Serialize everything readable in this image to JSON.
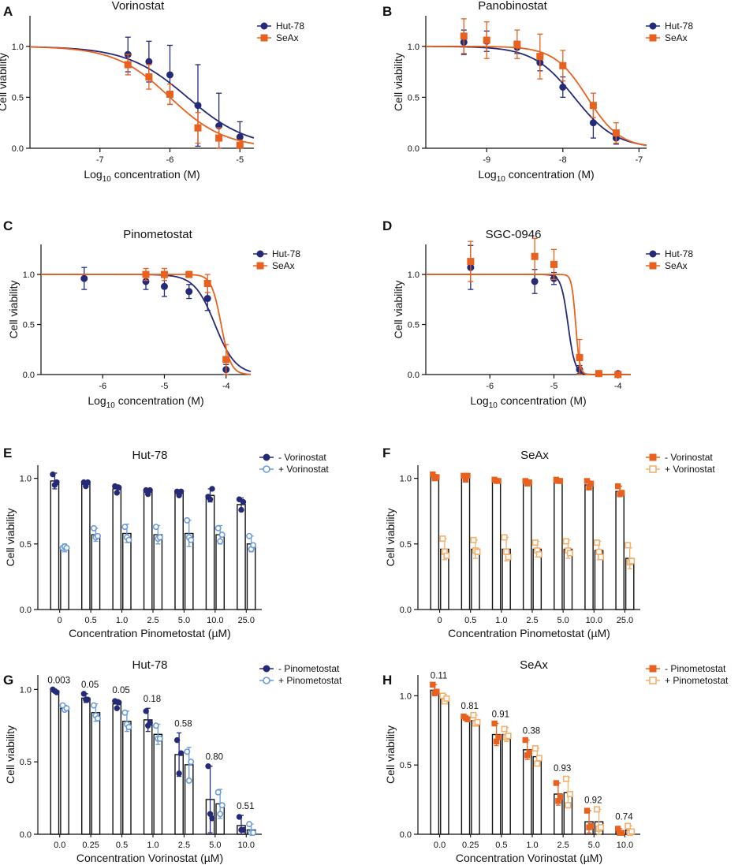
{
  "colors": {
    "hut_dark": "#252a78",
    "hut_light": "#6b9bd8",
    "seax_dark": "#e8611f",
    "seax_light": "#f2b06d",
    "axis": "#111111"
  },
  "chart_data": [
    {
      "id": "A",
      "letter": "A",
      "type": "line",
      "title": "Vorinostat",
      "xlabel_prefix": "Log",
      "xlabel_sub": "10",
      "xlabel_suffix": " concentration (M)",
      "ylabel": "Cell viability",
      "xlim": [
        -8,
        -4.8
      ],
      "ylim": [
        0,
        1.3
      ],
      "xticks": [
        -7,
        -6,
        -5
      ],
      "yticks": [
        0.0,
        0.5,
        1.0
      ],
      "xtick_labels": [
        "-7",
        "-6",
        "-5"
      ],
      "ytick_labels": [
        "0.0",
        "0.5",
        "1.0"
      ],
      "legend": [
        "Hut-78",
        "SeAx"
      ],
      "series": [
        {
          "name": "Hut-78",
          "marker": "circle",
          "color": "#252a78",
          "x": [
            -6.6,
            -6.3,
            -6.0,
            -5.6,
            -5.3,
            -5.0
          ],
          "y": [
            0.92,
            0.85,
            0.72,
            0.42,
            0.22,
            0.11
          ],
          "err": [
            0.17,
            0.2,
            0.29,
            0.4,
            0.32,
            0.15
          ],
          "fit": {
            "top": 1.0,
            "bottom": 0.0,
            "logec50": -5.75,
            "hill": 1.0
          }
        },
        {
          "name": "SeAx",
          "marker": "square",
          "color": "#e8611f",
          "x": [
            -6.6,
            -6.3,
            -6.0,
            -5.6,
            -5.3,
            -5.0
          ],
          "y": [
            0.82,
            0.7,
            0.53,
            0.2,
            0.1,
            0.03
          ],
          "err": [
            0.1,
            0.12,
            0.1,
            0.15,
            0.1,
            0.05
          ],
          "fit": {
            "top": 1.0,
            "bottom": 0.0,
            "logec50": -6.0,
            "hill": 1.1
          }
        }
      ]
    },
    {
      "id": "B",
      "letter": "B",
      "type": "line",
      "title": "Panobinostat",
      "xlabel_prefix": "Log",
      "xlabel_sub": "10",
      "xlabel_suffix": " concentration (M)",
      "ylabel": "Cell viability",
      "xlim": [
        -9.8,
        -6.9
      ],
      "ylim": [
        0,
        1.3
      ],
      "xticks": [
        -9,
        -8,
        -7
      ],
      "yticks": [
        0.0,
        0.5,
        1.0
      ],
      "xtick_labels": [
        "-9",
        "-8",
        "-7"
      ],
      "ytick_labels": [
        "0.0",
        "0.5",
        "1.0"
      ],
      "legend": [
        "Hut-78",
        "SeAx"
      ],
      "series": [
        {
          "name": "Hut-78",
          "marker": "circle",
          "color": "#252a78",
          "x": [
            -9.3,
            -9.0,
            -8.6,
            -8.3,
            -8.0,
            -7.6,
            -7.3
          ],
          "y": [
            1.04,
            1.05,
            0.99,
            0.84,
            0.6,
            0.25,
            0.1
          ],
          "err": [
            0.12,
            0.1,
            0.06,
            0.08,
            0.1,
            0.15,
            0.06
          ],
          "fit": {
            "top": 1.0,
            "bottom": 0.0,
            "logec50": -7.85,
            "hill": 1.6
          }
        },
        {
          "name": "SeAx",
          "marker": "square",
          "color": "#e8611f",
          "x": [
            -9.3,
            -9.0,
            -8.6,
            -8.3,
            -8.0,
            -7.6,
            -7.3
          ],
          "y": [
            1.1,
            1.06,
            1.02,
            0.9,
            0.81,
            0.42,
            0.15
          ],
          "err": [
            0.17,
            0.18,
            0.14,
            0.22,
            0.15,
            0.12,
            0.1
          ],
          "fit": {
            "top": 1.0,
            "bottom": 0.0,
            "logec50": -7.68,
            "hill": 2.0
          }
        }
      ]
    },
    {
      "id": "C",
      "letter": "C",
      "type": "line",
      "title": "Pinometostat",
      "xlabel_prefix": "Log",
      "xlabel_sub": "10",
      "xlabel_suffix": " concentration (M)",
      "ylabel": "Cell viability",
      "xlim": [
        -7,
        -3.6
      ],
      "ylim": [
        0,
        1.3
      ],
      "xticks": [
        -6,
        -5,
        -4
      ],
      "yticks": [
        0.0,
        0.5,
        1.0
      ],
      "xtick_labels": [
        "-6",
        "-5",
        "-4"
      ],
      "ytick_labels": [
        "0.0",
        "0.5",
        "1.0"
      ],
      "legend": [
        "Hut-78",
        "SeAx"
      ],
      "series": [
        {
          "name": "Hut-78",
          "marker": "circle",
          "color": "#252a78",
          "x": [
            -6.3,
            -5.3,
            -5.0,
            -4.6,
            -4.3,
            -4.0
          ],
          "y": [
            0.96,
            0.93,
            0.88,
            0.83,
            0.76,
            0.05
          ],
          "err": [
            0.11,
            0.08,
            0.1,
            0.07,
            0.12,
            0.05
          ],
          "fit": {
            "top": 1.0,
            "bottom": 0.0,
            "logec50": -4.18,
            "hill": 2.6
          }
        },
        {
          "name": "SeAx",
          "marker": "square",
          "color": "#e8611f",
          "x": [
            -5.3,
            -5.0,
            -4.6,
            -4.3,
            -4.0
          ],
          "y": [
            1.0,
            1.0,
            1.0,
            0.91,
            0.15
          ],
          "err": [
            0.06,
            0.06,
            0.03,
            0.09,
            0.15
          ],
          "fit": {
            "top": 1.0,
            "bottom": 0.0,
            "logec50": -4.08,
            "hill": 5.5
          }
        }
      ]
    },
    {
      "id": "D",
      "letter": "D",
      "type": "line",
      "title": "SGC-0946",
      "xlabel_prefix": "Log",
      "xlabel_sub": "10",
      "xlabel_suffix": " concentration (M)",
      "ylabel": "Cell viability",
      "xlim": [
        -7,
        -3.8
      ],
      "ylim": [
        0,
        1.3
      ],
      "xticks": [
        -6,
        -5,
        -4
      ],
      "yticks": [
        0.0,
        0.5,
        1.0
      ],
      "xtick_labels": [
        "-6",
        "-5",
        "-4"
      ],
      "ytick_labels": [
        "0.0",
        "0.5",
        "1.0"
      ],
      "legend": [
        "Hut-78",
        "SeAx"
      ],
      "series": [
        {
          "name": "Hut-78",
          "marker": "circle",
          "color": "#252a78",
          "x": [
            -6.3,
            -5.3,
            -5.0,
            -4.6,
            -4.3,
            -4.0
          ],
          "y": [
            1.07,
            0.93,
            0.96,
            0.05,
            0.01,
            0.01
          ],
          "err": [
            0.22,
            0.12,
            0.06,
            0.04,
            0.02,
            0.02
          ],
          "fit": {
            "top": 1.0,
            "bottom": 0.0,
            "logec50": -4.78,
            "hill": 8.0
          }
        },
        {
          "name": "SeAx",
          "marker": "square",
          "color": "#e8611f",
          "x": [
            -6.3,
            -5.3,
            -5.0,
            -4.6,
            -4.3,
            -4.0
          ],
          "y": [
            1.13,
            1.18,
            1.1,
            0.17,
            0.01,
            0.0
          ],
          "err": [
            0.2,
            0.18,
            0.15,
            0.18,
            0.02,
            0.02
          ],
          "fit": {
            "top": 1.0,
            "bottom": 0.0,
            "logec50": -4.66,
            "hill": 14.0
          }
        }
      ]
    },
    {
      "id": "E",
      "letter": "E",
      "type": "bar",
      "title": "Hut-78",
      "xlabel": "Concentration Pinometostat (µM)",
      "ylabel": "Cell viability",
      "ylim": [
        0,
        1.1
      ],
      "yticks": [
        0.0,
        0.5,
        1.0
      ],
      "ytick_labels": [
        "0.0",
        "0.5",
        "1.0"
      ],
      "categories": [
        "0",
        "0.5",
        "1.0",
        "2.5",
        "5.0",
        "10.0",
        "25.0"
      ],
      "legend": [
        "- Vorinostat",
        "+ Vorinostat"
      ],
      "series": [
        {
          "name": "- Vorinostat",
          "marker": "circle",
          "filled": true,
          "color": "#252a78",
          "values": [
            0.98,
            0.96,
            0.92,
            0.9,
            0.89,
            0.87,
            0.8
          ],
          "err": [
            0.06,
            0.02,
            0.03,
            0.02,
            0.02,
            0.05,
            0.05
          ],
          "points": [
            [
              1.03,
              0.95,
              0.97
            ],
            [
              0.97,
              0.94,
              0.97
            ],
            [
              0.94,
              0.89,
              0.93
            ],
            [
              0.91,
              0.88,
              0.91
            ],
            [
              0.9,
              0.87,
              0.9
            ],
            [
              0.86,
              0.84,
              0.92
            ],
            [
              0.84,
              0.76,
              0.82
            ]
          ]
        },
        {
          "name": "+ Vorinostat",
          "marker": "circle",
          "filled": false,
          "color": "#6b9bd8",
          "values": [
            0.47,
            0.57,
            0.58,
            0.57,
            0.58,
            0.57,
            0.5
          ],
          "err": [
            0.03,
            0.05,
            0.07,
            0.07,
            0.1,
            0.07,
            0.06
          ],
          "points": [
            [
              0.47,
              0.48,
              0.47
            ],
            [
              0.62,
              0.55,
              0.56
            ],
            [
              0.63,
              0.55,
              0.53
            ],
            [
              0.63,
              0.54,
              0.55
            ],
            [
              0.68,
              0.55,
              0.53
            ],
            [
              0.62,
              0.52,
              0.57
            ],
            [
              0.56,
              0.46,
              0.49
            ]
          ]
        }
      ]
    },
    {
      "id": "F",
      "letter": "F",
      "type": "bar",
      "title": "SeAx",
      "xlabel": "Concentration Pinometostat (µM)",
      "ylabel": "Cell viability",
      "ylim": [
        0,
        1.1
      ],
      "yticks": [
        0.0,
        0.5,
        1.0
      ],
      "ytick_labels": [
        "0.0",
        "0.5",
        "1.0"
      ],
      "categories": [
        "0",
        "0.5",
        "1.0",
        "2.5",
        "5.0",
        "10.0",
        "25.0"
      ],
      "legend": [
        "- Vorinostat",
        "+ Vorinostat"
      ],
      "series": [
        {
          "name": "- Vorinostat",
          "marker": "square",
          "filled": true,
          "color": "#e8611f",
          "values": [
            1.01,
            1.01,
            0.98,
            0.97,
            0.98,
            0.95,
            0.9
          ],
          "err": [
            0.02,
            0.02,
            0.01,
            0.02,
            0.01,
            0.03,
            0.04
          ],
          "points": [
            [
              1.03,
              1.0,
              1.01
            ],
            [
              1.02,
              0.99,
              1.02
            ],
            [
              0.99,
              0.98,
              0.98
            ],
            [
              0.98,
              0.96,
              0.97
            ],
            [
              0.99,
              0.98,
              0.98
            ],
            [
              0.98,
              0.93,
              0.96
            ],
            [
              0.94,
              0.88,
              0.89
            ]
          ]
        },
        {
          "name": "+ Vorinostat",
          "marker": "square",
          "filled": false,
          "color": "#f2b06d",
          "values": [
            0.46,
            0.46,
            0.46,
            0.46,
            0.46,
            0.45,
            0.39
          ],
          "err": [
            0.08,
            0.07,
            0.09,
            0.06,
            0.07,
            0.07,
            0.08
          ],
          "points": [
            [
              0.54,
              0.44,
              0.41
            ],
            [
              0.53,
              0.45,
              0.44
            ],
            [
              0.55,
              0.44,
              0.4
            ],
            [
              0.51,
              0.45,
              0.42
            ],
            [
              0.52,
              0.45,
              0.43
            ],
            [
              0.51,
              0.44,
              0.4
            ],
            [
              0.49,
              0.36,
              0.37
            ]
          ]
        }
      ]
    },
    {
      "id": "G",
      "letter": "G",
      "type": "bar",
      "title": "Hut-78",
      "xlabel": "Concentration Vorinostat (µM)",
      "ylabel": "Cell viability",
      "ylim": [
        0,
        1.1
      ],
      "yticks": [
        0.0,
        0.5,
        1.0
      ],
      "ytick_labels": [
        "0.0",
        "0.5",
        "1.0"
      ],
      "categories": [
        "0.0",
        "0.25",
        "0.5",
        "1.0",
        "2.5",
        "5.0",
        "10.0"
      ],
      "annotations": [
        "0.003",
        "0.05",
        "0.05",
        "0.18",
        "0.58",
        "0.80",
        "0.51"
      ],
      "legend": [
        "- Pinometostat",
        "+ Pinometostat"
      ],
      "series": [
        {
          "name": "- Pinometostat",
          "marker": "circle",
          "filled": true,
          "color": "#252a78",
          "values": [
            0.99,
            0.94,
            0.9,
            0.79,
            0.55,
            0.24,
            0.06
          ],
          "err": [
            0.01,
            0.03,
            0.03,
            0.08,
            0.15,
            0.23,
            0.07
          ],
          "points": [
            [
              1.0,
              0.99,
              0.98
            ],
            [
              0.97,
              0.93,
              0.93
            ],
            [
              0.92,
              0.87,
              0.91
            ],
            [
              0.85,
              0.75,
              0.77
            ],
            [
              0.65,
              0.42,
              0.56
            ],
            [
              0.47,
              0.14,
              0.11
            ],
            [
              0.12,
              0.03,
              0.03
            ]
          ]
        },
        {
          "name": "+ Pinometostat",
          "marker": "circle",
          "filled": false,
          "color": "#6b9bd8",
          "values": [
            0.87,
            0.84,
            0.78,
            0.69,
            0.48,
            0.21,
            0.03
          ],
          "err": [
            0.02,
            0.06,
            0.07,
            0.07,
            0.12,
            0.1,
            0.04
          ],
          "points": [
            [
              0.89,
              0.86,
              0.87
            ],
            [
              0.89,
              0.82,
              0.8
            ],
            [
              0.84,
              0.76,
              0.74
            ],
            [
              0.75,
              0.66,
              0.66
            ],
            [
              0.57,
              0.37,
              0.5
            ],
            [
              0.29,
              0.14,
              0.2
            ],
            [
              0.07,
              0.01,
              0.01
            ]
          ]
        }
      ]
    },
    {
      "id": "H",
      "letter": "H",
      "type": "bar",
      "title": "SeAx",
      "xlabel": "Concentration Vorinostat (µM)",
      "ylabel": "Cell viability",
      "ylim": [
        0,
        1.15
      ],
      "yticks": [
        0.0,
        0.5,
        1.0
      ],
      "ytick_labels": [
        "0.0",
        "0.5",
        "1.0"
      ],
      "categories": [
        "0.0",
        "0.25",
        "0.5",
        "1.0",
        "2.5",
        "5.0",
        "10.0"
      ],
      "annotations": [
        "0.11",
        "0.81",
        "0.91",
        "0.38",
        "0.93",
        "0.92",
        "0.74"
      ],
      "legend": [
        "- Pinometostat",
        "+ Pinometostat"
      ],
      "series": [
        {
          "name": "- Pinometostat",
          "marker": "square",
          "filled": true,
          "color": "#e8611f",
          "values": [
            1.04,
            0.84,
            0.72,
            0.61,
            0.29,
            0.09,
            0.02
          ],
          "err": [
            0.04,
            0.01,
            0.08,
            0.07,
            0.08,
            0.08,
            0.02
          ],
          "points": [
            [
              1.08,
              1.02,
              1.03
            ],
            [
              0.85,
              0.84,
              0.83
            ],
            [
              0.8,
              0.67,
              0.7
            ],
            [
              0.68,
              0.57,
              0.59
            ],
            [
              0.37,
              0.24,
              0.27
            ],
            [
              0.17,
              0.05,
              0.06
            ],
            [
              0.04,
              0.01,
              0.01
            ]
          ]
        },
        {
          "name": "+ Pinometostat",
          "marker": "square",
          "filled": false,
          "color": "#f2b06d",
          "values": [
            0.98,
            0.82,
            0.72,
            0.56,
            0.3,
            0.09,
            0.03
          ],
          "err": [
            0.03,
            0.04,
            0.05,
            0.06,
            0.11,
            0.09,
            0.03
          ],
          "points": [
            [
              1.0,
              0.96,
              0.98
            ],
            [
              0.86,
              0.8,
              0.81
            ],
            [
              0.76,
              0.7,
              0.71
            ],
            [
              0.62,
              0.51,
              0.55
            ],
            [
              0.4,
              0.21,
              0.29
            ],
            [
              0.18,
              0.04,
              0.05
            ],
            [
              0.06,
              0.01,
              0.02
            ]
          ]
        }
      ]
    }
  ]
}
